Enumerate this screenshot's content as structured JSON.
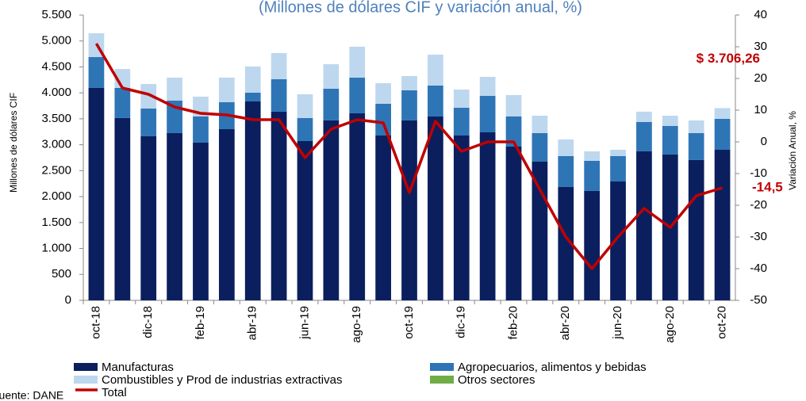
{
  "chart_data": {
    "type": "bar",
    "stacked": true,
    "subtitle": "(Millones de dólares CIF y variación anual, %)",
    "y_label": "Millones de dólares CIF",
    "y2_label": "Variación Anual, %",
    "source": "Fuente: DANE",
    "categories": [
      "oct-18",
      null,
      "dic-18",
      null,
      "feb-19",
      null,
      "abr-19",
      null,
      "jun-19",
      null,
      "ago-19",
      null,
      "oct-19",
      null,
      "dic-19",
      null,
      "feb-20",
      null,
      "abr-20",
      null,
      "jun-20",
      null,
      "ago-20",
      null,
      "oct-20"
    ],
    "series": [
      {
        "name": "Manufacturas",
        "color": "#0b1f5e",
        "values": [
          4095,
          3515,
          3163,
          3224,
          3041,
          3300,
          3835,
          3637,
          3071,
          3469,
          3606,
          3178,
          3469,
          3545,
          3178,
          3239,
          2964,
          2674,
          2185,
          2109,
          2292,
          2873,
          2812,
          2705,
          2903
        ]
      },
      {
        "name": "Agropecuarios, alimentos y bebidas",
        "color": "#2e75b6",
        "values": [
          595,
          580,
          535,
          626,
          504,
          520,
          168,
          626,
          443,
          611,
          688,
          611,
          580,
          596,
          535,
          703,
          581,
          550,
          596,
          580,
          489,
          565,
          550,
          519,
          596
        ]
      },
      {
        "name": "Combustibles y Prod de industrias extractivas",
        "color": "#bdd7ee",
        "values": [
          460,
          365,
          474,
          444,
          382,
          474,
          505,
          504,
          459,
          473,
          596,
          398,
          275,
          596,
          351,
          367,
          413,
          336,
          321,
          184,
          122,
          199,
          198,
          245,
          207
        ]
      },
      {
        "name": "Otros sectores",
        "color": "#70ad47",
        "values": [
          0,
          0,
          0,
          0,
          0,
          0,
          0,
          0,
          0,
          0,
          0,
          0,
          0,
          0,
          0,
          0,
          0,
          0,
          0,
          0,
          0,
          0,
          0,
          0,
          0
        ]
      },
      {
        "name": "Total",
        "color": "#c00000",
        "type": "line",
        "axis": "y2",
        "values": [
          31,
          17,
          15,
          11,
          9,
          8.5,
          7,
          7,
          -5,
          4,
          7,
          6,
          -16,
          6.5,
          -3,
          0,
          0,
          -15,
          -30,
          -40,
          -30,
          -21,
          -27,
          -17,
          -14.5
        ]
      }
    ],
    "ylim": [
      0,
      5500
    ],
    "yticks": [
      0,
      500,
      {
        "value": 1000,
        "label": "1.000"
      },
      {
        "value": 1500,
        "label": "1.500"
      },
      {
        "value": 2000,
        "label": "2.000"
      },
      {
        "value": 2500,
        "label": "2.500"
      },
      {
        "value": 3000,
        "label": "3.000"
      },
      {
        "value": 3500,
        "label": "3.500"
      },
      {
        "value": 4000,
        "label": "4.000"
      },
      {
        "value": 4500,
        "label": "4.500"
      },
      {
        "value": 5000,
        "label": "5.000"
      },
      {
        "value": 5500,
        "label": "5.500"
      }
    ],
    "y2lim": [
      -50,
      40
    ],
    "y2ticks": [
      -50,
      -40,
      -30,
      -20,
      -10,
      0,
      10,
      20,
      30,
      40
    ],
    "annotations": [
      {
        "text": "$ 3.706,26",
        "value": 3706.26
      },
      {
        "text": "-14,5",
        "value": -14.5
      }
    ]
  }
}
